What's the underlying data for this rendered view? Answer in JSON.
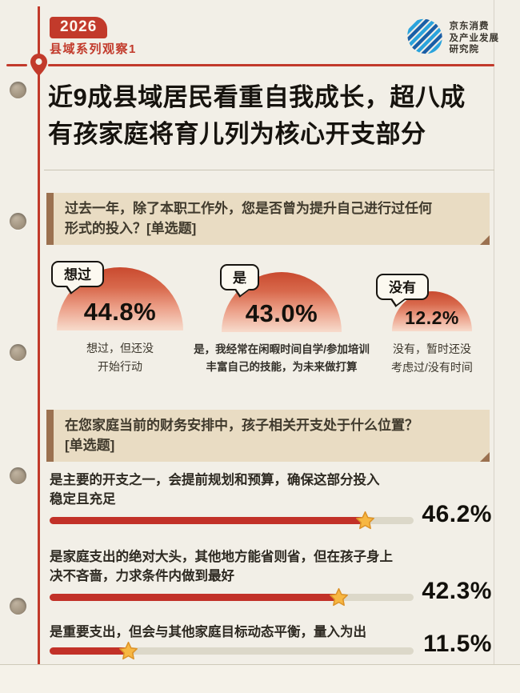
{
  "page": {
    "background": "#f2efe7",
    "accent_red": "#c23a2b",
    "box_tan": "#e9dcc3",
    "box_border_brown": "#9b7150",
    "bar_red": "#c23128",
    "bar_track_gray": "#dcd8c9",
    "star_gold": "#f7b742"
  },
  "header": {
    "year_badge": "2026",
    "series_label": "县域系列观察1",
    "logo_line1": "京东消费",
    "logo_line2": "及产业发展",
    "logo_line3": "研究院"
  },
  "title": {
    "line1": "近9成县域居民看重自我成长，超八成",
    "line2": "有孩家庭将育儿列为核心开支部分"
  },
  "q1": {
    "line1": "过去一年，除了本职工作外，您是否曾为提升自己进行过任何",
    "line2": "形式的投入？[单选题]"
  },
  "self_growth": {
    "items": [
      {
        "bubble": "想过",
        "value_label": "44.8%",
        "cap1": "想过，但还没",
        "cap2": "开始行动"
      },
      {
        "bubble": "是",
        "value_label": "43.0%",
        "cap1": "是，我经常在闲暇时间自学/参加培训",
        "cap2": "丰富自己的技能，为未来做打算"
      },
      {
        "bubble": "没有",
        "value_label": "12.2%",
        "cap1": "没有，暂时还没",
        "cap2": "考虑过/没有时间"
      }
    ]
  },
  "q2": {
    "line1": "在您家庭当前的财务安排中，孩子相关开支处于什么位置？",
    "line2": "[单选题]"
  },
  "child_expense": {
    "bar_scale_max": 53.3,
    "items": [
      {
        "label1": "是主要的开支之一，会提前规划和预算，确保这部分投入",
        "label2": "稳定且充足",
        "value": 46.2,
        "value_label": "46.2%"
      },
      {
        "label1": "是家庭支出的绝对大头，其他地方能省则省，但在孩子身上",
        "label2": "决不吝啬，力求条件内做到最好",
        "value": 42.3,
        "value_label": "42.3%"
      },
      {
        "label1": "是重要支出，但会与其他家庭目标动态平衡，量入为出",
        "label2": "",
        "value": 11.5,
        "value_label": "11.5%"
      }
    ]
  },
  "chart_data": [
    {
      "type": "pie",
      "title": "过去一年，除了本职工作外，您是否曾为提升自己进行过任何形式的投入？[单选题]",
      "categories": [
        "想过，但还没开始行动",
        "是，我经常在闲暇时间自学/参加培训丰富自己的技能，为未来做打算",
        "没有，暂时还没考虑过/没有时间"
      ],
      "values": [
        44.8,
        43.0,
        12.2
      ],
      "legend_labels": [
        "想过",
        "是",
        "没有"
      ],
      "layout": "proportional semicircles, value labels inside"
    },
    {
      "type": "bar",
      "title": "在您家庭当前的财务安排中，孩子相关开支处于什么位置？[单选题]",
      "categories": [
        "是主要的开支之一，会提前规划和预算，确保这部分投入稳定且充足",
        "是家庭支出的绝对大头，其他地方能省则省，但在孩子身上决不吝啬，力求条件内做到最好",
        "是重要支出，但会与其他家庭目标动态平衡，量入为出"
      ],
      "values": [
        46.2,
        42.3,
        11.5
      ],
      "xlim": [
        0,
        53.3
      ],
      "orientation": "horizontal",
      "marker": "star at bar end",
      "data_labels": [
        "46.2%",
        "42.3%",
        "11.5%"
      ]
    }
  ]
}
